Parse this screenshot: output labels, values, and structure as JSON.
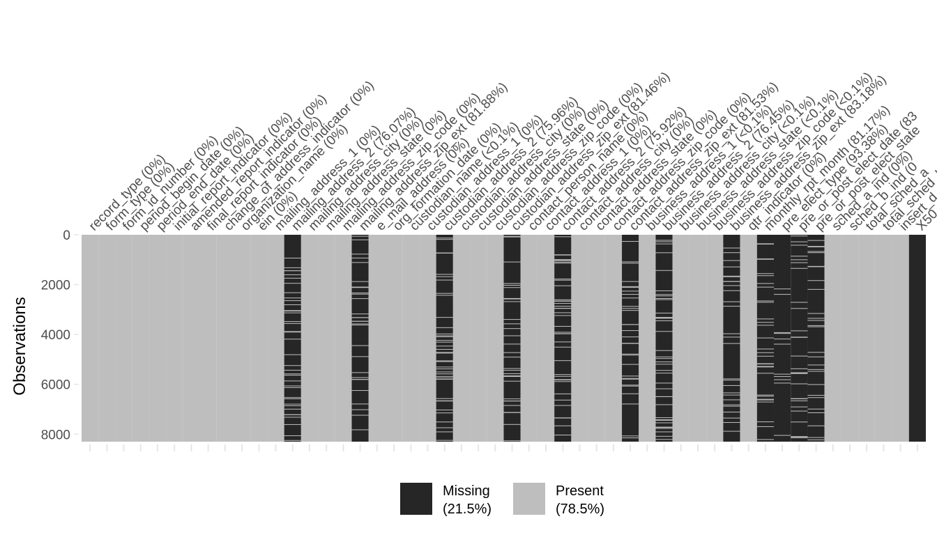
{
  "chart_data": {
    "type": "heatmap",
    "title": "",
    "ylabel": "Observations",
    "xlabel": "",
    "n_rows": 8300,
    "ylim": [
      0,
      8300
    ],
    "y_ticks": [
      0,
      2000,
      4000,
      6000,
      8000
    ],
    "y_tick_labels": [
      "0",
      "2000",
      "4000",
      "6000",
      "8000"
    ],
    "columns": [
      {
        "label": "record_type (0%)",
        "missing_pct": 0
      },
      {
        "label": "form_type (0%)",
        "missing_pct": 0
      },
      {
        "label": "form_id_number (0%)",
        "missing_pct": 0
      },
      {
        "label": "period_begin_date (0%)",
        "missing_pct": 0
      },
      {
        "label": "period_end_date (0%)",
        "missing_pct": 0
      },
      {
        "label": "initial_report_indicator (0%)",
        "missing_pct": 0
      },
      {
        "label": "amended_report_indicator (0%)",
        "missing_pct": 0
      },
      {
        "label": "final_report_indicator (0%)",
        "missing_pct": 0
      },
      {
        "label": "change_of_address_indicator (0%)",
        "missing_pct": 0
      },
      {
        "label": "organization_name (0%)",
        "missing_pct": 0
      },
      {
        "label": "ein (0%)",
        "missing_pct": 0
      },
      {
        "label": "mailing_address_1 (0%)",
        "missing_pct": 0
      },
      {
        "label": "mailing_address_2 (76.07%)",
        "missing_pct": 76.07
      },
      {
        "label": "mailing_address_city (0%)",
        "missing_pct": 0
      },
      {
        "label": "mailing_address_state (0%)",
        "missing_pct": 0
      },
      {
        "label": "mailing_address_zip_code (0%)",
        "missing_pct": 0
      },
      {
        "label": "mailing_address_zip_ext (81.88%)",
        "missing_pct": 81.88
      },
      {
        "label": "e_mail_address (0%)",
        "missing_pct": 0
      },
      {
        "label": "org_formation_date (0%)",
        "missing_pct": 0
      },
      {
        "label": "custodian_name (<0.1%)",
        "missing_pct": 0.05
      },
      {
        "label": "custodian_address_1 (0%)",
        "missing_pct": 0
      },
      {
        "label": "custodian_address_2 (75.96%)",
        "missing_pct": 75.96
      },
      {
        "label": "custodian_address_city (0%)",
        "missing_pct": 0
      },
      {
        "label": "custodian_address_state (0%)",
        "missing_pct": 0
      },
      {
        "label": "custodian_address_zip_code (0%)",
        "missing_pct": 0
      },
      {
        "label": "custodian_address_zip_ext (81.46%)",
        "missing_pct": 81.46
      },
      {
        "label": "contact_person_name (0%)",
        "missing_pct": 0
      },
      {
        "label": "contact_address_1 (0%)",
        "missing_pct": 0
      },
      {
        "label": "contact_address_2 (75.92%)",
        "missing_pct": 75.92
      },
      {
        "label": "contact_address_city (0%)",
        "missing_pct": 0
      },
      {
        "label": "contact_address_state (0%)",
        "missing_pct": 0
      },
      {
        "label": "contact_address_zip_code (0%)",
        "missing_pct": 0
      },
      {
        "label": "contact_address_zip_ext (81.53%)",
        "missing_pct": 81.53
      },
      {
        "label": "business_address_1 (<0.1%)",
        "missing_pct": 0.05
      },
      {
        "label": "business_address_2 (76.45%)",
        "missing_pct": 76.45
      },
      {
        "label": "business_address_city (<0.1%)",
        "missing_pct": 0.05
      },
      {
        "label": "business_address_state (<0.1%)",
        "missing_pct": 0.05
      },
      {
        "label": "business_address_zip_code (<0.1%)",
        "missing_pct": 0.05
      },
      {
        "label": "business_address_zip_ext (83.18%)",
        "missing_pct": 83.18
      },
      {
        "label": "qtr_indicator (0%)",
        "missing_pct": 0
      },
      {
        "label": "monthly_rpt_month (81.17%)",
        "missing_pct": 81.17
      },
      {
        "label": "pre_elect_type (93.38%)",
        "missing_pct": 93.38
      },
      {
        "label": "pre_or_post_elect_date (83",
        "missing_pct": 83
      },
      {
        "label": "pre_or_post_elect_state",
        "missing_pct": 83
      },
      {
        "label": "sched_a_ind (0%)",
        "missing_pct": 0
      },
      {
        "label": "sched_b_ind (0",
        "missing_pct": 0
      },
      {
        "label": "total_sched_a",
        "missing_pct": 0
      },
      {
        "label": "total_sched_b",
        "missing_pct": 0
      },
      {
        "label": "insert_d",
        "missing_pct": 0
      },
      {
        "label": "X50",
        "missing_pct": 100
      }
    ],
    "legend": {
      "position": "bottom",
      "items": [
        {
          "label": "Missing",
          "pct": "(21.5%)",
          "color": "#262626"
        },
        {
          "label": "Present",
          "pct": "(78.5%)",
          "color": "#bebebe"
        }
      ]
    },
    "colors": {
      "missing": "#262626",
      "present": "#bebebe",
      "tick": "#e6e6e6",
      "text": "#4d4d4d"
    }
  }
}
